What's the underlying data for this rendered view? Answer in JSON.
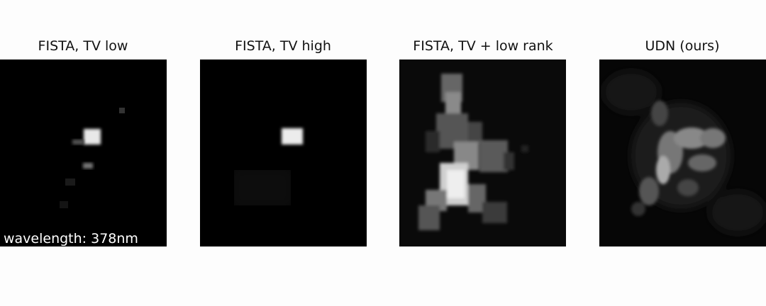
{
  "panels": [
    {
      "title": "FISTA, TV low"
    },
    {
      "title": "FISTA, TV high"
    },
    {
      "title": "FISTA, TV + low rank"
    },
    {
      "title": "UDN (ours)"
    }
  ],
  "overlay_label": "wavelength: 378nm"
}
